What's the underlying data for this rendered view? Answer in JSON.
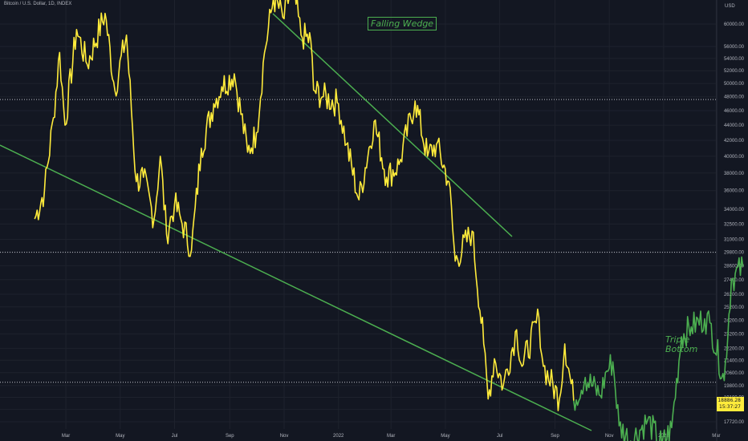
{
  "header": {
    "symbol": "Bitcoin / U.S. Dollar, 1D, INDEX"
  },
  "annotations": {
    "falling_wedge": "Falling Wedge",
    "triple_bottom": "Triple\nBottom"
  },
  "price_badge": {
    "price": "18886.28",
    "countdown": "15:37:27"
  },
  "colors": {
    "background": "#131722",
    "grid": "#1e222d",
    "price_line_yellow": "#ffeb3b",
    "price_line_green": "#4caf50",
    "trendline": "#4caf50",
    "level_line": "#d1d4dc",
    "axis_text": "#b2b5be"
  },
  "chart_data": {
    "type": "line",
    "title": "Bitcoin / U.S. Dollar, 1D, INDEX",
    "y_scale": "log",
    "y_unit": "USD",
    "x_tick_labels": [
      "Mar",
      "May",
      "Jul",
      "Sep",
      "Nov",
      "2022",
      "Mar",
      "May",
      "Jul",
      "Sep",
      "Nov",
      "2023",
      "Mar"
    ],
    "y_tick_labels": [
      60000,
      56000,
      54000,
      52000,
      50000,
      48000,
      46000,
      44000,
      42000,
      40000,
      38000,
      36000,
      34000,
      32500,
      31000,
      29800,
      28600,
      27400,
      26200,
      25200,
      24200,
      23200,
      22200,
      21400,
      20600,
      19800,
      19100,
      18400,
      17720
    ],
    "horizontal_levels": [
      47600,
      29800,
      20000
    ],
    "series": [
      {
        "name": "",
        "color": "#ffeb3b",
        "points": [
          [
            "2021-01-25",
            33000
          ],
          [
            "2021-02-05",
            36000
          ],
          [
            "2021-02-15",
            45000
          ],
          [
            "2021-02-22",
            55000
          ],
          [
            "2021-02-28",
            44000
          ],
          [
            "2021-03-13",
            59000
          ],
          [
            "2021-03-25",
            53000
          ],
          [
            "2021-04-14",
            62000
          ],
          [
            "2021-04-25",
            49000
          ],
          [
            "2021-05-08",
            58000
          ],
          [
            "2021-05-19",
            37000
          ],
          [
            "2021-05-27",
            37500
          ],
          [
            "2021-06-08",
            33000
          ],
          [
            "2021-06-15",
            40000
          ],
          [
            "2021-06-22",
            31500
          ],
          [
            "2021-07-01",
            34500
          ],
          [
            "2021-07-08",
            33000
          ],
          [
            "2021-07-20",
            30000
          ],
          [
            "2021-07-31",
            41000
          ],
          [
            "2021-08-14",
            47000
          ],
          [
            "2021-08-23",
            49500
          ],
          [
            "2021-09-06",
            51500
          ],
          [
            "2021-09-21",
            40500
          ],
          [
            "2021-10-01",
            43000
          ],
          [
            "2021-10-10",
            55000
          ],
          [
            "2021-10-20",
            65000
          ],
          [
            "2021-11-01",
            61000
          ],
          [
            "2021-11-10",
            68000
          ],
          [
            "2021-11-20",
            58000
          ],
          [
            "2021-12-01",
            57000
          ],
          [
            "2021-12-04",
            49000
          ],
          [
            "2021-12-15",
            48000
          ],
          [
            "2022-01-01",
            47000
          ],
          [
            "2022-01-10",
            41500
          ],
          [
            "2022-01-24",
            35000
          ],
          [
            "2022-02-10",
            44500
          ],
          [
            "2022-02-24",
            37500
          ],
          [
            "2022-03-10",
            39000
          ],
          [
            "2022-03-28",
            47400
          ],
          [
            "2022-04-11",
            40000
          ],
          [
            "2022-04-21",
            41500
          ],
          [
            "2022-05-05",
            37000
          ],
          [
            "2022-05-12",
            29000
          ],
          [
            "2022-05-31",
            31800
          ],
          [
            "2022-06-13",
            22500
          ],
          [
            "2022-06-18",
            19000
          ],
          [
            "2022-06-25",
            21500
          ],
          [
            "2022-07-05",
            19800
          ],
          [
            "2022-07-20",
            23500
          ],
          [
            "2022-07-26",
            21000
          ],
          [
            "2022-08-14",
            24400
          ],
          [
            "2022-08-19",
            21000
          ],
          [
            "2022-09-06",
            19000
          ],
          [
            "2022-09-12",
            22500
          ],
          [
            "2022-09-22",
            18900
          ]
        ]
      },
      {
        "name": "",
        "color": "#4caf50",
        "points": [
          [
            "2022-09-22",
            18900
          ],
          [
            "2022-10-05",
            20300
          ],
          [
            "2022-10-22",
            19200
          ],
          [
            "2022-10-29",
            20700
          ],
          [
            "2022-11-05",
            21300
          ],
          [
            "2022-11-12",
            17500
          ],
          [
            "2022-11-25",
            16700
          ],
          [
            "2022-12-14",
            17800
          ],
          [
            "2022-12-30",
            16500
          ],
          [
            "2023-01-10",
            17400
          ],
          [
            "2023-01-21",
            23000
          ],
          [
            "2023-02-01",
            23700
          ],
          [
            "2023-02-16",
            24300
          ],
          [
            "2023-02-22",
            24000
          ],
          [
            "2023-03-10",
            20100
          ],
          [
            "2023-03-18",
            27400
          ],
          [
            "2023-03-31",
            28500
          ]
        ]
      }
    ]
  }
}
